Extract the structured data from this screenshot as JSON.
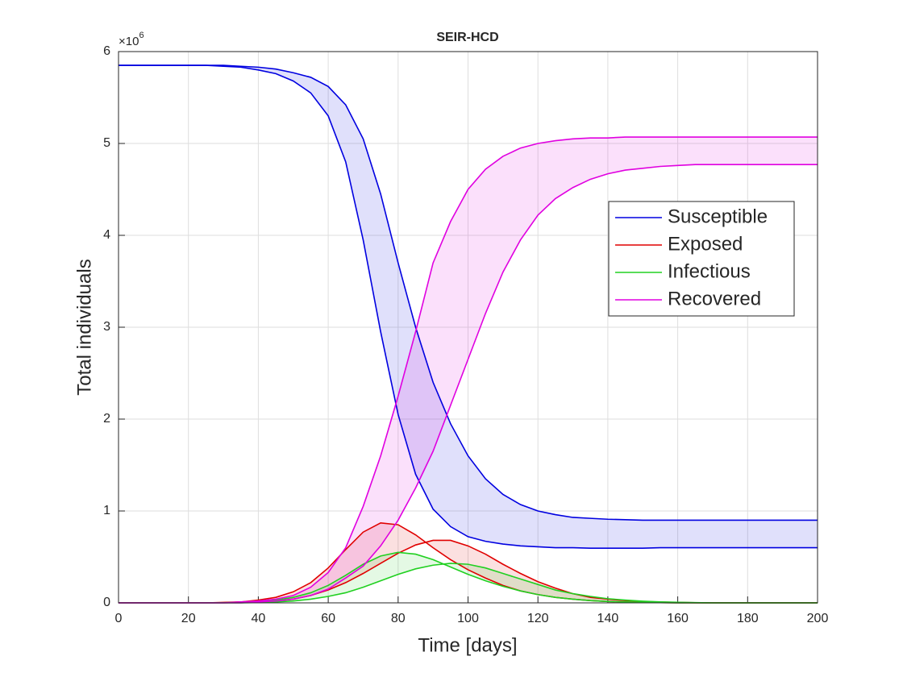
{
  "chart_data": {
    "type": "line",
    "title": "SEIR-HCD",
    "x_label": "Time [days]",
    "y_label": "Total individuals",
    "y_multiplier": {
      "base": "×10",
      "exponent": "6"
    },
    "x": [
      0,
      5,
      10,
      15,
      20,
      25,
      30,
      35,
      40,
      45,
      50,
      55,
      60,
      65,
      70,
      75,
      80,
      85,
      90,
      95,
      100,
      105,
      110,
      115,
      120,
      125,
      130,
      135,
      140,
      145,
      150,
      155,
      160,
      165,
      170,
      175,
      180,
      185,
      190,
      195,
      200
    ],
    "series": [
      {
        "name": "Susceptible",
        "color": "#0000e0",
        "values": [
          5.85,
          5.85,
          5.85,
          5.85,
          5.85,
          5.85,
          5.84,
          5.83,
          5.8,
          5.76,
          5.68,
          5.55,
          5.3,
          4.8,
          3.95,
          2.95,
          2.05,
          1.4,
          1.02,
          0.83,
          0.72,
          0.67,
          0.64,
          0.62,
          0.61,
          0.6,
          0.6,
          0.595,
          0.595,
          0.595,
          0.595,
          0.6,
          0.6,
          0.6,
          0.6,
          0.6,
          0.6,
          0.6,
          0.6,
          0.6,
          0.6
        ],
        "values_b": [
          5.85,
          5.85,
          5.85,
          5.85,
          5.85,
          5.85,
          5.85,
          5.84,
          5.83,
          5.81,
          5.77,
          5.72,
          5.62,
          5.42,
          5.05,
          4.45,
          3.7,
          3.0,
          2.4,
          1.95,
          1.6,
          1.35,
          1.18,
          1.07,
          1.0,
          0.96,
          0.93,
          0.92,
          0.91,
          0.905,
          0.9,
          0.9,
          0.9,
          0.9,
          0.9,
          0.9,
          0.9,
          0.9,
          0.9,
          0.9,
          0.9
        ]
      },
      {
        "name": "Exposed",
        "color": "#e00000",
        "values": [
          0,
          0,
          0,
          0,
          0,
          0,
          0.005,
          0.01,
          0.03,
          0.06,
          0.12,
          0.22,
          0.38,
          0.58,
          0.77,
          0.87,
          0.85,
          0.74,
          0.6,
          0.47,
          0.36,
          0.27,
          0.19,
          0.13,
          0.09,
          0.06,
          0.04,
          0.025,
          0.015,
          0.01,
          0.005,
          0.003,
          0,
          0,
          0,
          0,
          0,
          0,
          0,
          0,
          0
        ],
        "values_b": [
          0,
          0,
          0,
          0,
          0,
          0,
          0.002,
          0.005,
          0.01,
          0.02,
          0.04,
          0.08,
          0.14,
          0.22,
          0.32,
          0.43,
          0.54,
          0.63,
          0.68,
          0.68,
          0.62,
          0.53,
          0.42,
          0.32,
          0.23,
          0.16,
          0.1,
          0.06,
          0.04,
          0.025,
          0.015,
          0.008,
          0.005,
          0.002,
          0,
          0,
          0,
          0,
          0,
          0,
          0
        ]
      },
      {
        "name": "Infectious",
        "color": "#20d020",
        "values": [
          0,
          0,
          0,
          0,
          0,
          0,
          0.002,
          0.005,
          0.01,
          0.03,
          0.06,
          0.11,
          0.19,
          0.3,
          0.42,
          0.51,
          0.55,
          0.53,
          0.47,
          0.39,
          0.31,
          0.24,
          0.18,
          0.13,
          0.09,
          0.06,
          0.04,
          0.025,
          0.015,
          0.01,
          0.005,
          0.003,
          0,
          0,
          0,
          0,
          0,
          0,
          0,
          0,
          0
        ],
        "values_b": [
          0,
          0,
          0,
          0,
          0,
          0,
          0,
          0,
          0.004,
          0.01,
          0.02,
          0.04,
          0.07,
          0.11,
          0.17,
          0.24,
          0.31,
          0.37,
          0.41,
          0.43,
          0.42,
          0.38,
          0.32,
          0.26,
          0.2,
          0.14,
          0.1,
          0.07,
          0.045,
          0.03,
          0.018,
          0.01,
          0.006,
          0.003,
          0,
          0,
          0,
          0,
          0,
          0,
          0
        ]
      },
      {
        "name": "Recovered",
        "color": "#e000e0",
        "values": [
          0,
          0,
          0,
          0,
          0,
          0,
          0,
          0.01,
          0.02,
          0.04,
          0.08,
          0.17,
          0.33,
          0.6,
          1.05,
          1.6,
          2.25,
          2.95,
          3.7,
          4.15,
          4.5,
          4.72,
          4.86,
          4.95,
          5.0,
          5.03,
          5.05,
          5.06,
          5.06,
          5.07,
          5.07,
          5.07,
          5.07,
          5.07,
          5.07,
          5.07,
          5.07,
          5.07,
          5.07,
          5.07,
          5.07
        ],
        "values_b": [
          0,
          0,
          0,
          0,
          0,
          0,
          0,
          0,
          0.01,
          0.02,
          0.04,
          0.08,
          0.15,
          0.27,
          0.4,
          0.62,
          0.9,
          1.25,
          1.65,
          2.15,
          2.65,
          3.15,
          3.6,
          3.95,
          4.22,
          4.4,
          4.52,
          4.61,
          4.67,
          4.71,
          4.73,
          4.75,
          4.76,
          4.77,
          4.77,
          4.77,
          4.77,
          4.77,
          4.77,
          4.77,
          4.77
        ]
      }
    ],
    "xlim": [
      0,
      200
    ],
    "xticks": [
      0,
      20,
      40,
      60,
      80,
      100,
      120,
      140,
      160,
      180,
      200
    ],
    "ylim": [
      0,
      6
    ],
    "yticks": [
      0,
      1,
      2,
      3,
      4,
      5,
      6
    ],
    "grid": true,
    "band_fill": true,
    "legend": "northeast"
  }
}
